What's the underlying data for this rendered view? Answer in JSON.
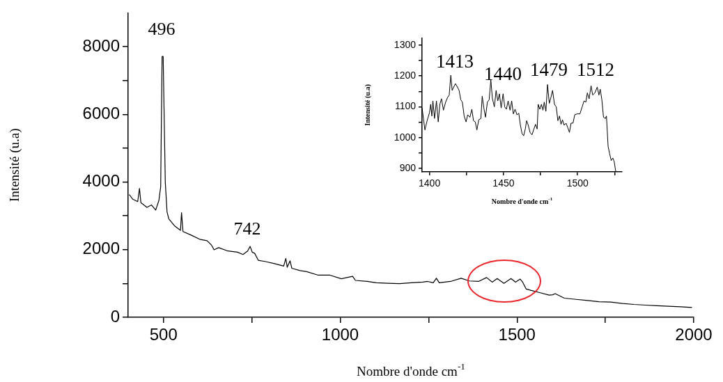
{
  "chart_data": [
    {
      "type": "line",
      "xlabel": "Nombre d'onde cm$^{-1}$",
      "ylabel": "Intensité (u.a)",
      "marker": "none",
      "line_style": "solid",
      "xlim": [
        400,
        2000
      ],
      "xticks": [
        500,
        {
          "value": 750,
          "label": null
        },
        1000,
        {
          "value": 1250,
          "label": null
        },
        1500,
        {
          "value": 1750,
          "label": null
        },
        2000
      ],
      "ylim": [
        0,
        9000
      ],
      "yticks": [
        0,
        {
          "value": 1000,
          "label": null
        },
        2000,
        {
          "value": 3000,
          "label": null
        },
        4000,
        {
          "value": 5000,
          "label": null
        },
        6000,
        {
          "value": 7000,
          "label": null
        },
        8000
      ],
      "annotations": [
        "496",
        "742"
      ],
      "series": [
        {
          "color": "#000000",
          "x": [
            403,
            413,
            427,
            432,
            436,
            453,
            466,
            478,
            487,
            492,
            496,
            499,
            505,
            510,
            515,
            531,
            548,
            551,
            555,
            577,
            604,
            623,
            636,
            643,
            656,
            682,
            709,
            725,
            738,
            745,
            751,
            758,
            768,
            787,
            814,
            840,
            846,
            850,
            858,
            863,
            886,
            905,
            938,
            971,
            1003,
            1035,
            1043,
            1076,
            1102,
            1135,
            1168,
            1201,
            1234,
            1247,
            1263,
            1272,
            1280,
            1312,
            1342,
            1365,
            1391,
            1414,
            1430,
            1444,
            1463,
            1483,
            1496,
            1509,
            1516,
            1526,
            1542,
            1562,
            1591,
            1601,
            1608,
            1634,
            1667,
            1700,
            1732,
            1765,
            1798,
            1831,
            1864,
            1896,
            1929,
            1962,
            1995
          ],
          "values": [
            3630,
            3490,
            3420,
            3810,
            3390,
            3250,
            3320,
            3170,
            3455,
            3860,
            7710,
            7710,
            4000,
            3115,
            2910,
            2705,
            2570,
            3095,
            2535,
            2435,
            2300,
            2265,
            2130,
            1995,
            2060,
            1960,
            1925,
            1855,
            1960,
            2095,
            1925,
            1890,
            1685,
            1650,
            1585,
            1515,
            1740,
            1480,
            1670,
            1450,
            1380,
            1350,
            1245,
            1245,
            1140,
            1210,
            1090,
            1060,
            1020,
            1005,
            995,
            1020,
            1040,
            1060,
            1020,
            1155,
            1020,
            1060,
            1155,
            1075,
            1060,
            1175,
            1040,
            1145,
            1005,
            1145,
            1040,
            1130,
            1040,
            835,
            790,
            735,
            655,
            665,
            700,
            565,
            530,
            495,
            460,
            450,
            410,
            380,
            360,
            340,
            325,
            310,
            290
          ]
        }
      ]
    },
    {
      "type": "line",
      "xlabel": "Nombre d'onde cm$^{-1}$",
      "ylabel": "Intensité (u.a)",
      "marker": "none",
      "line_style": "solid",
      "xlim": [
        1395,
        1530
      ],
      "xticks": [
        1400,
        {
          "value": 1425,
          "label": null
        },
        1450,
        {
          "value": 1475,
          "label": null
        },
        1500,
        {
          "value": 1525,
          "label": null
        }
      ],
      "ylim": [
        889,
        1322
      ],
      "yticks": [
        900,
        {
          "value": 950,
          "label": null
        },
        1000,
        {
          "value": 1050,
          "label": null
        },
        1100,
        {
          "value": 1150,
          "label": null
        },
        1200,
        {
          "value": 1250,
          "label": null
        },
        1300
      ],
      "annotations": [
        "1413",
        "1440",
        "1479",
        "1512"
      ],
      "series": [
        {
          "color": "#000000",
          "x": [
            1395,
            1396.9,
            1398.4,
            1400,
            1400.8,
            1401.6,
            1402.3,
            1403.4,
            1404.7,
            1405.9,
            1407,
            1408.1,
            1409.4,
            1410.9,
            1412.2,
            1413.3,
            1414.4,
            1415.3,
            1416.4,
            1417.5,
            1418.8,
            1420,
            1421.1,
            1422.2,
            1423.4,
            1424.7,
            1425.8,
            1427.3,
            1428.6,
            1429.7,
            1430.9,
            1432,
            1433.3,
            1434.7,
            1435.6,
            1436.7,
            1437.8,
            1439.1,
            1440.3,
            1441.4,
            1442.5,
            1443.8,
            1445,
            1446.1,
            1447.2,
            1448.4,
            1449.7,
            1450.8,
            1451.9,
            1453.1,
            1454.4,
            1455.5,
            1456.6,
            1457.8,
            1459.1,
            1460.3,
            1461.4,
            1462.5,
            1463.6,
            1464.7,
            1465.6,
            1466.7,
            1467.9,
            1469.2,
            1470.3,
            1471.6,
            1472.7,
            1473.4,
            1474.5,
            1475.6,
            1476.6,
            1477.5,
            1478.6,
            1479.7,
            1480.9,
            1482,
            1483.1,
            1484.4,
            1485.6,
            1486.7,
            1487.8,
            1488.8,
            1489.8,
            1490.9,
            1492.2,
            1493.4,
            1494.5,
            1495.6,
            1496.9,
            1498.1,
            1499.7,
            1501.6,
            1503.1,
            1504.4,
            1505.6,
            1506.6,
            1507.8,
            1509.1,
            1510.2,
            1511.7,
            1513.3,
            1514.4,
            1515.3,
            1516.4,
            1517.5,
            1518.8,
            1519.5,
            1520.6,
            1521.6,
            1522.7,
            1523.8,
            1524.7,
            1525.8
          ],
          "values": [
            1096,
            1025,
            1055,
            1081,
            1108,
            1070,
            1119,
            1062,
            1119,
            1051,
            1108,
            1126,
            1089,
            1115,
            1130,
            1138,
            1202,
            1153,
            1164,
            1175,
            1164,
            1153,
            1123,
            1115,
            1070,
            1051,
            1074,
            1066,
            1092,
            1055,
            1051,
            1025,
            1058,
            1062,
            1134,
            1096,
            1066,
            1115,
            1123,
            1187,
            1126,
            1100,
            1153,
            1119,
            1142,
            1096,
            1142,
            1100,
            1092,
            1119,
            1089,
            1119,
            1077,
            1092,
            1074,
            1079,
            1040,
            1013,
            1006,
            1028,
            1055,
            1040,
            1017,
            1009,
            1025,
            1043,
            1028,
            1108,
            1092,
            1108,
            1089,
            1115,
            1085,
            1172,
            1111,
            1130,
            1153,
            1108,
            1100,
            1055,
            1070,
            1043,
            1058,
            1040,
            1047,
            1032,
            1017,
            1047,
            1047,
            1074,
            1077,
            1077,
            1100,
            1119,
            1115,
            1145,
            1126,
            1168,
            1138,
            1145,
            1164,
            1138,
            1157,
            1123,
            1066,
            1062,
            1070,
            972,
            949,
            926,
            934,
            923,
            889
          ]
        }
      ]
    }
  ]
}
